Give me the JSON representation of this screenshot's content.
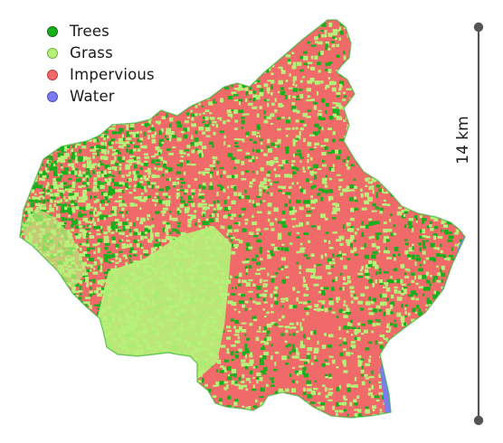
{
  "legend": {
    "items": [
      {
        "label": "Trees",
        "color": "#17b01c",
        "border": "#0b6e10"
      },
      {
        "label": "Grass",
        "color": "#b6f27a",
        "border": "#6fb33a"
      },
      {
        "label": "Impervious",
        "color": "#f06a6a",
        "border": "#b83a3a"
      },
      {
        "label": "Water",
        "color": "#7b7cf0",
        "border": "#4a4bb8"
      }
    ]
  },
  "scale_bar": {
    "label": "14 km",
    "color": "#555555"
  },
  "map": {
    "land_cover_classes": [
      "trees",
      "grass",
      "impervious",
      "water"
    ],
    "colors": {
      "trees": "#17b01c",
      "grass": "#b6f27a",
      "impervious": "#f06a6a",
      "water": "#7b7cf0"
    }
  }
}
